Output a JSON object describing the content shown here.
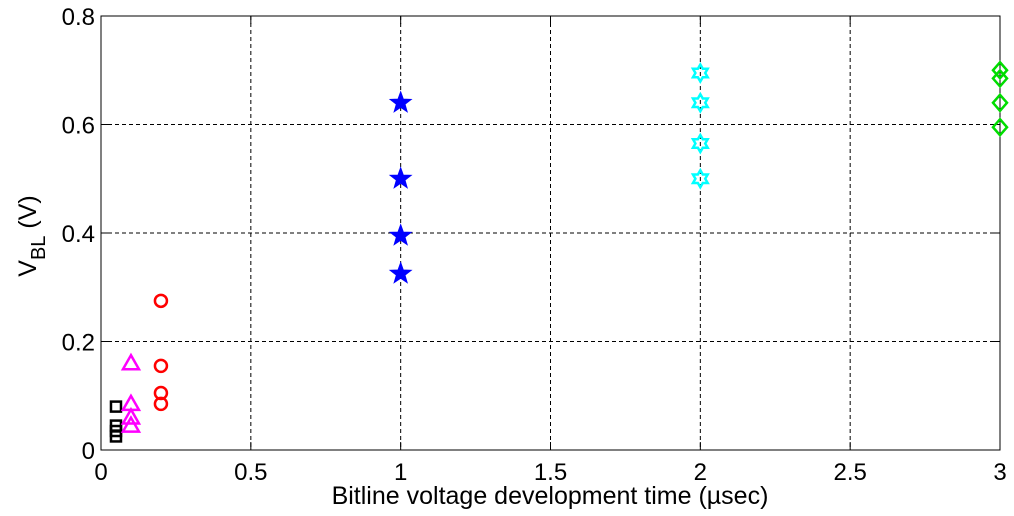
{
  "chart_data": {
    "type": "scatter",
    "title": "",
    "xlabel": "Bitline voltage development time (µsec)",
    "ylabel": {
      "main": "V",
      "subscript": "BL",
      "unit": " (V)"
    },
    "xlim": [
      0,
      3
    ],
    "ylim": [
      0,
      0.8
    ],
    "xticks": [
      0,
      0.5,
      1,
      1.5,
      2,
      2.5,
      3
    ],
    "xtick_labels": [
      "0",
      "0.5",
      "1",
      "1.5",
      "2",
      "2.5",
      "3"
    ],
    "yticks": [
      0,
      0.2,
      0.4,
      0.6,
      0.8
    ],
    "ytick_labels": [
      "0",
      "0.2",
      "0.4",
      "0.6",
      "0.8"
    ],
    "grid": true,
    "series": [
      {
        "marker": "square",
        "color": "#000000",
        "x": [
          0.05,
          0.05,
          0.05,
          0.05
        ],
        "y": [
          0.08,
          0.045,
          0.035,
          0.025
        ]
      },
      {
        "marker": "triangle",
        "color": "#ff00ff",
        "x": [
          0.1,
          0.1,
          0.1,
          0.1
        ],
        "y": [
          0.16,
          0.085,
          0.06,
          0.045
        ]
      },
      {
        "marker": "circle",
        "color": "#ff0000",
        "x": [
          0.2,
          0.2,
          0.2,
          0.2
        ],
        "y": [
          0.275,
          0.155,
          0.105,
          0.085
        ]
      },
      {
        "marker": "star5",
        "color": "#0000ff",
        "x": [
          1,
          1,
          1,
          1
        ],
        "y": [
          0.64,
          0.5,
          0.395,
          0.325
        ]
      },
      {
        "marker": "hexagram",
        "color": "#00ffff",
        "x": [
          2,
          2,
          2,
          2
        ],
        "y": [
          0.695,
          0.64,
          0.565,
          0.5
        ]
      },
      {
        "marker": "diamond",
        "color": "#00dd00",
        "x": [
          3,
          3,
          3,
          3
        ],
        "y": [
          0.7,
          0.685,
          0.64,
          0.595
        ]
      }
    ]
  }
}
